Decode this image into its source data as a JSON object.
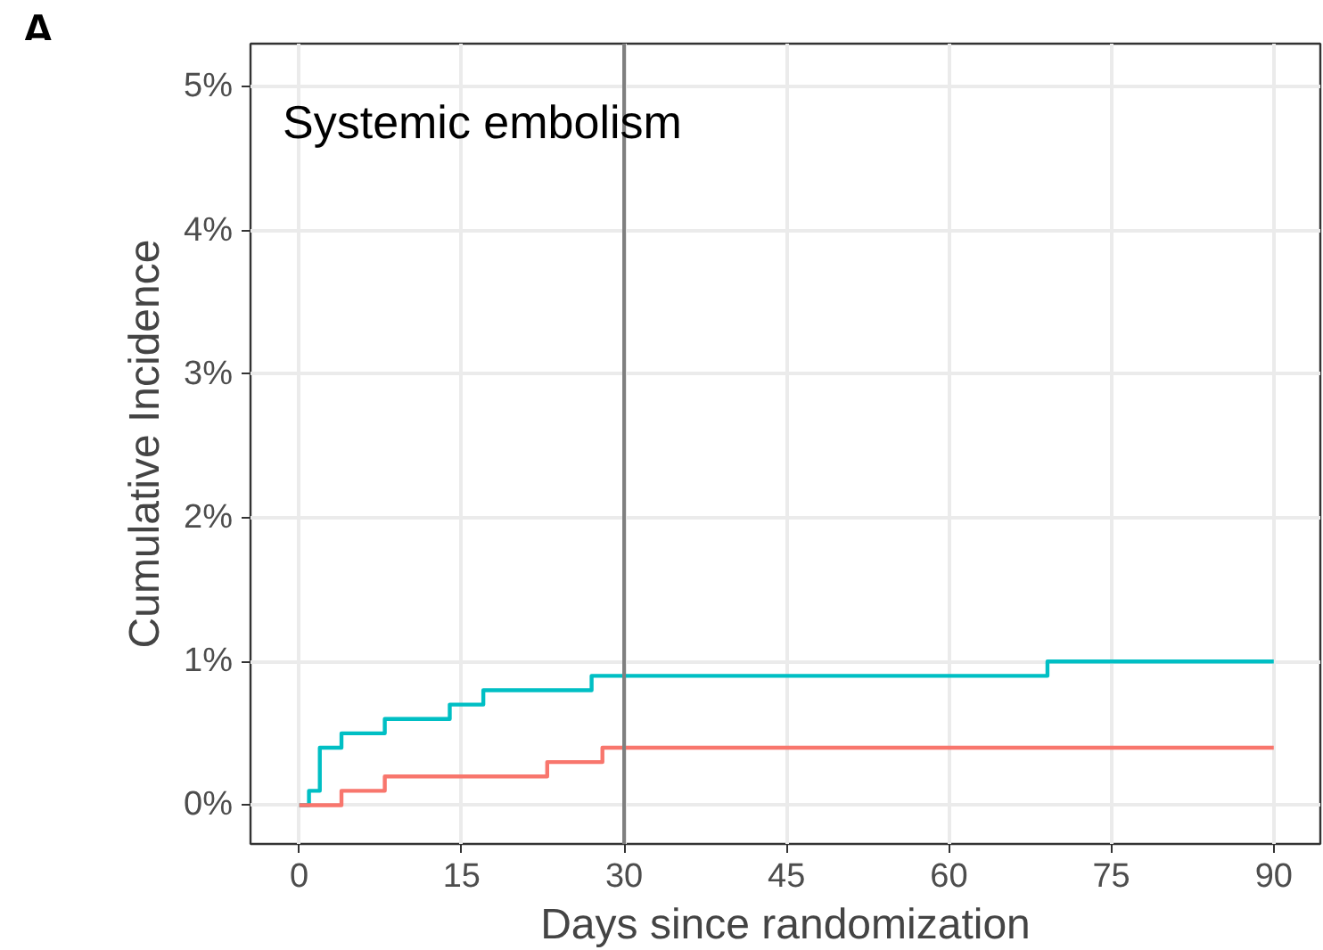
{
  "chart_data": {
    "type": "step",
    "title": "Systemic embolism",
    "xlabel": "Days since randomization",
    "ylabel": "Cumulative Incidence",
    "annotations": [
      "A"
    ],
    "series": [
      {
        "color": "#00bfc4",
        "x": [
          0,
          0.9,
          1.9,
          3.9,
          7.9,
          13.9,
          17,
          27,
          69.1,
          90
        ],
        "values": [
          0,
          0.1,
          0.4,
          0.5,
          0.6,
          0.7,
          0.8,
          0.9,
          1.0,
          1.0
        ]
      },
      {
        "color": "#f8766d",
        "x": [
          0,
          3.9,
          7.9,
          22.9,
          28,
          90
        ],
        "values": [
          0,
          0.1,
          0.2,
          0.3,
          0.4,
          0.4
        ]
      }
    ],
    "xlim": [
      -4.5,
      94.3
    ],
    "ylim": [
      -0.27,
      5.3
    ],
    "xticks": [
      0,
      15,
      30,
      45,
      60,
      75,
      90
    ],
    "yticks": [
      {
        "value": 0,
        "label": "0%"
      },
      {
        "value": 1,
        "label": "1%"
      },
      {
        "value": 2,
        "label": "2%"
      },
      {
        "value": 3,
        "label": "3%"
      },
      {
        "value": 4,
        "label": "4%"
      },
      {
        "value": 5,
        "label": "5%"
      }
    ],
    "ref_lines": [
      {
        "axis": "x",
        "value": 30,
        "color": "#7f7f7f"
      }
    ],
    "grid": true,
    "line_style": "solid"
  }
}
